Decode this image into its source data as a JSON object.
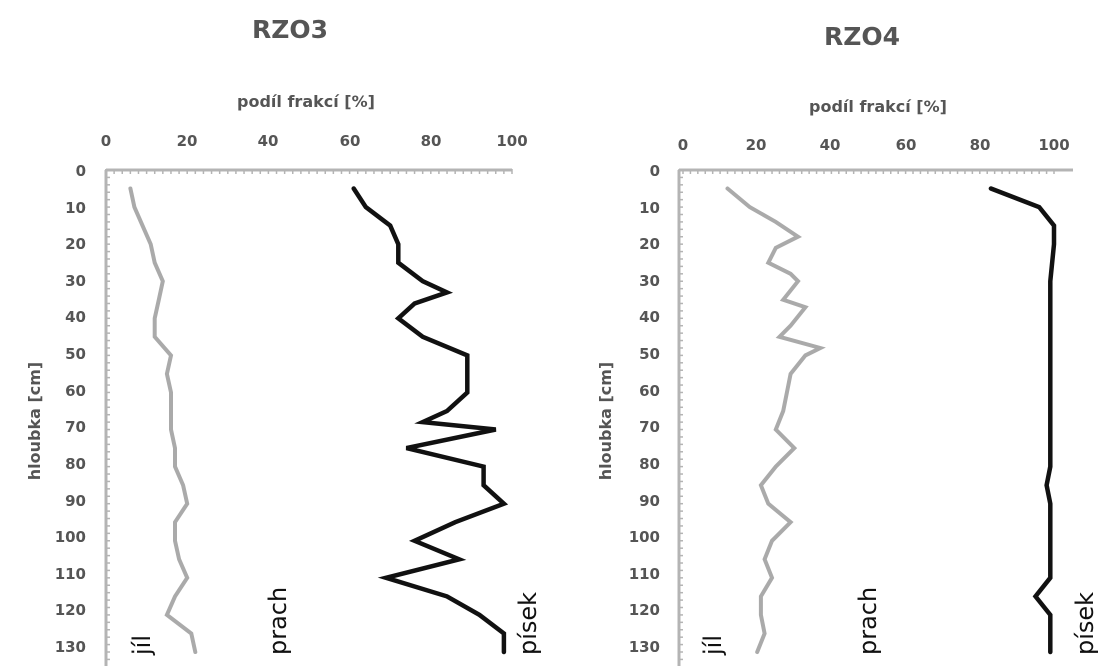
{
  "chart_data": [
    {
      "type": "line",
      "title": "RZO3",
      "xlabel": "podíl frakcí [%]",
      "ylabel": "hloubka [cm]",
      "xlim": [
        0,
        100
      ],
      "ylim": [
        0,
        130
      ],
      "x_ticks": [
        "0",
        "20",
        "40",
        "60",
        "80",
        "100"
      ],
      "y_ticks": [
        "0",
        "10",
        "20",
        "30",
        "40",
        "50",
        "60",
        "70",
        "80",
        "90",
        "100",
        "110",
        "120",
        "130"
      ],
      "y_reversed": true,
      "x_axis_position": "top",
      "grid": false,
      "series": [
        {
          "color": "#aaaaaa",
          "points": [
            [
              6,
              5
            ],
            [
              7,
              10
            ],
            [
              9,
              15
            ],
            [
              11,
              20
            ],
            [
              12,
              25
            ],
            [
              14,
              30
            ],
            [
              13,
              35
            ],
            [
              12,
              40
            ],
            [
              12,
              45
            ],
            [
              16,
              50
            ],
            [
              15,
              55
            ],
            [
              16,
              60
            ],
            [
              16,
              65
            ],
            [
              16,
              70
            ],
            [
              17,
              75
            ],
            [
              17,
              80
            ],
            [
              19,
              85
            ],
            [
              20,
              90
            ],
            [
              17,
              95
            ],
            [
              17,
              100
            ],
            [
              18,
              105
            ],
            [
              20,
              110
            ],
            [
              17,
              115
            ],
            [
              15,
              120
            ],
            [
              21,
              125
            ],
            [
              22,
              130
            ]
          ]
        },
        {
          "color": "#111111",
          "points": [
            [
              61,
              5
            ],
            [
              64,
              10
            ],
            [
              70,
              15
            ],
            [
              72,
              20
            ],
            [
              72,
              25
            ],
            [
              78,
              30
            ],
            [
              84,
              33
            ],
            [
              76,
              36
            ],
            [
              72,
              40
            ],
            [
              78,
              45
            ],
            [
              89,
              50
            ],
            [
              89,
              55
            ],
            [
              89,
              60
            ],
            [
              84,
              65
            ],
            [
              78,
              68
            ],
            [
              96,
              70
            ],
            [
              74,
              75
            ],
            [
              93,
              80
            ],
            [
              93,
              85
            ],
            [
              98,
              90
            ],
            [
              86,
              95
            ],
            [
              76,
              100
            ],
            [
              87,
              105
            ],
            [
              69,
              110
            ],
            [
              84,
              115
            ],
            [
              92,
              120
            ],
            [
              98,
              125
            ],
            [
              98,
              130
            ]
          ]
        }
      ],
      "annotations": [
        "jíl",
        "prach",
        "písek"
      ]
    },
    {
      "type": "line",
      "title": "RZO4",
      "xlabel": "podíl frakcí [%]",
      "ylabel": "hloubka [cm]",
      "xlim": [
        0,
        100
      ],
      "ylim": [
        0,
        130
      ],
      "x_ticks": [
        "0",
        "20",
        "40",
        "60",
        "80",
        "100"
      ],
      "y_ticks": [
        "0",
        "10",
        "20",
        "30",
        "40",
        "50",
        "60",
        "70",
        "80",
        "90",
        "100",
        "110",
        "120",
        "130"
      ],
      "y_reversed": true,
      "x_axis_position": "top",
      "grid": false,
      "series": [
        {
          "color": "#aaaaaa",
          "points": [
            [
              12,
              5
            ],
            [
              18,
              10
            ],
            [
              25,
              14
            ],
            [
              31,
              18
            ],
            [
              25,
              21
            ],
            [
              23,
              25
            ],
            [
              29,
              28
            ],
            [
              31,
              30
            ],
            [
              27,
              35
            ],
            [
              33,
              37
            ],
            [
              29,
              42
            ],
            [
              26,
              45
            ],
            [
              37,
              48
            ],
            [
              33,
              50
            ],
            [
              29,
              55
            ],
            [
              28,
              60
            ],
            [
              27,
              65
            ],
            [
              25,
              70
            ],
            [
              30,
              75
            ],
            [
              25,
              80
            ],
            [
              21,
              85
            ],
            [
              23,
              90
            ],
            [
              29,
              95
            ],
            [
              24,
              100
            ],
            [
              22,
              105
            ],
            [
              24,
              110
            ],
            [
              21,
              115
            ],
            [
              21,
              120
            ],
            [
              22,
              125
            ],
            [
              20,
              130
            ]
          ]
        },
        {
          "color": "#111111",
          "points": [
            [
              83,
              5
            ],
            [
              96,
              10
            ],
            [
              100,
              15
            ],
            [
              100,
              20
            ],
            [
              99,
              30
            ],
            [
              99,
              40
            ],
            [
              99,
              50
            ],
            [
              99,
              60
            ],
            [
              99,
              70
            ],
            [
              99,
              80
            ],
            [
              98,
              85
            ],
            [
              99,
              90
            ],
            [
              99,
              100
            ],
            [
              99,
              110
            ],
            [
              95,
              115
            ],
            [
              99,
              120
            ],
            [
              99,
              130
            ]
          ]
        }
      ],
      "annotations": [
        "jíl",
        "prach",
        "písek"
      ]
    }
  ]
}
